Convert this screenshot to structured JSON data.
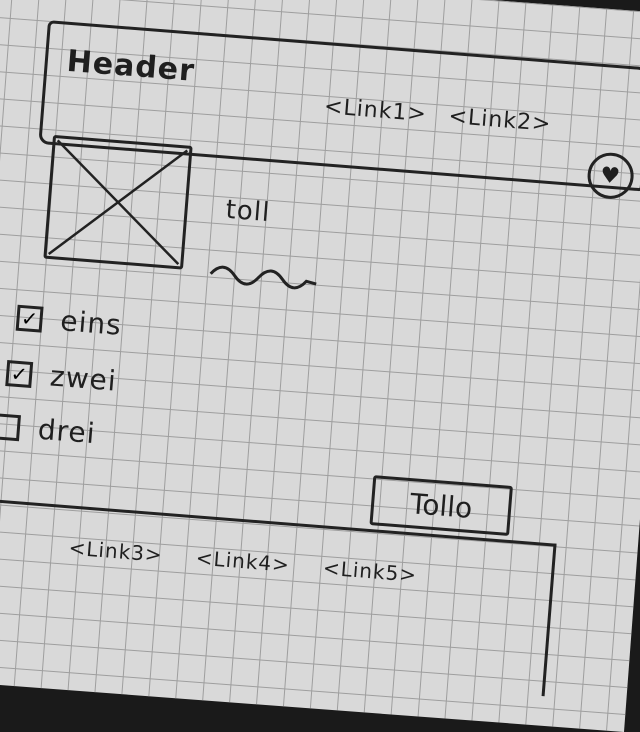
{
  "header": {
    "title": "Header",
    "links": [
      "<Link1>",
      "<Link2>"
    ],
    "favorite_icon": "heart-icon"
  },
  "content": {
    "image_placeholder_icon": "image-placeholder-icon",
    "title": "toll"
  },
  "options": [
    {
      "label": "eins",
      "checked": true
    },
    {
      "label": "zwei",
      "checked": true
    },
    {
      "label": "drei",
      "checked": false
    }
  ],
  "action_button_label": "Tollo",
  "footer": {
    "links": [
      "<Link3>",
      "<Link4>",
      "<Link5>"
    ]
  },
  "colors": {
    "ink": "#1f1f1f",
    "paper": "#d9d9d9",
    "grid": "#9e9e9e"
  }
}
